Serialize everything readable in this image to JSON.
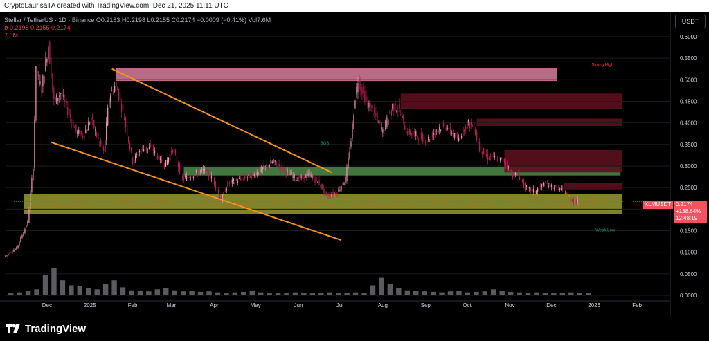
{
  "header": {
    "attribution": "CryptoLaurisaTA created with TradingView.com, Dec 21, 2025 11:11 UTC"
  },
  "legend": {
    "line1": "Stellar / TetherUS · 1D · Binance  O0.2183  H0.2198  L0.2155  C0.2174  −0.0009 (−0.41%)  Vol7.6M",
    "line2": "ø  0.2198  0.2155  0.2174",
    "line3": "7.6M"
  },
  "price_scale": {
    "currency": "USDT"
  },
  "last_price": {
    "symbol": "XLMUSDT",
    "value": "0.2174",
    "change": "+138.64%",
    "countdown": "12:48:19"
  },
  "brand": {
    "name": "TradingView"
  },
  "colors": {
    "up": "#f48fb1",
    "down": "#b71c50",
    "channel": "#f7931a",
    "resistance_zone": "#f48fb1",
    "support_zone": "#c8c840",
    "green_zone": "#4c8c4a",
    "dark_zone": "#5a0f1e",
    "label_red": "#f23645",
    "label_green": "#089981",
    "volume": "#5a5a60"
  },
  "chart_data": {
    "type": "candlestick",
    "symbol": "XLMUSDT",
    "exchange": "Binance",
    "interval": "1D",
    "ylim": [
      0.0,
      0.64
    ],
    "y_ticks": [
      "0.6000",
      "0.5500",
      "0.5000",
      "0.4500",
      "0.4000",
      "0.3500",
      "0.3000",
      "0.2500",
      "0.2000",
      "0.1500",
      "0.1000",
      "0.0500",
      "0.0000"
    ],
    "x_ticks": [
      "Dec",
      "2025",
      "Feb",
      "Mar",
      "Apr",
      "May",
      "Jun",
      "Jul",
      "Aug",
      "Sep",
      "Oct",
      "Nov",
      "Dec",
      "2026",
      "Feb"
    ],
    "x_tick_dates": [
      "2024-12-01",
      "2025-01-01",
      "2025-02-01",
      "2025-03-01",
      "2025-04-01",
      "2025-05-01",
      "2025-06-01",
      "2025-07-01",
      "2025-08-01",
      "2025-09-01",
      "2025-10-01",
      "2025-11-01",
      "2025-12-01",
      "2026-01-01",
      "2026-02-01"
    ],
    "x_range": [
      "2024-11-01",
      "2026-02-25"
    ],
    "price_path": [
      [
        "2024-11-01",
        0.09
      ],
      [
        "2024-11-10",
        0.11
      ],
      [
        "2024-11-18",
        0.17
      ],
      [
        "2024-11-22",
        0.3
      ],
      [
        "2024-11-24",
        0.52
      ],
      [
        "2024-11-28",
        0.48
      ],
      [
        "2024-12-03",
        0.58
      ],
      [
        "2024-12-07",
        0.45
      ],
      [
        "2024-12-12",
        0.47
      ],
      [
        "2024-12-18",
        0.42
      ],
      [
        "2024-12-23",
        0.38
      ],
      [
        "2024-12-28",
        0.37
      ],
      [
        "2025-01-03",
        0.41
      ],
      [
        "2025-01-08",
        0.36
      ],
      [
        "2025-01-12",
        0.33
      ],
      [
        "2025-01-16",
        0.46
      ],
      [
        "2025-01-21",
        0.49
      ],
      [
        "2025-01-27",
        0.41
      ],
      [
        "2025-02-02",
        0.31
      ],
      [
        "2025-02-08",
        0.34
      ],
      [
        "2025-02-16",
        0.34
      ],
      [
        "2025-02-25",
        0.3
      ],
      [
        "2025-03-03",
        0.34
      ],
      [
        "2025-03-10",
        0.27
      ],
      [
        "2025-03-18",
        0.28
      ],
      [
        "2025-03-25",
        0.29
      ],
      [
        "2025-04-01",
        0.27
      ],
      [
        "2025-04-07",
        0.22
      ],
      [
        "2025-04-12",
        0.26
      ],
      [
        "2025-04-22",
        0.27
      ],
      [
        "2025-05-01",
        0.28
      ],
      [
        "2025-05-10",
        0.3
      ],
      [
        "2025-05-14",
        0.31
      ],
      [
        "2025-05-23",
        0.29
      ],
      [
        "2025-06-01",
        0.27
      ],
      [
        "2025-06-10",
        0.28
      ],
      [
        "2025-06-17",
        0.26
      ],
      [
        "2025-06-22",
        0.23
      ],
      [
        "2025-06-30",
        0.24
      ],
      [
        "2025-07-06",
        0.27
      ],
      [
        "2025-07-10",
        0.36
      ],
      [
        "2025-07-13",
        0.46
      ],
      [
        "2025-07-15",
        0.5
      ],
      [
        "2025-07-21",
        0.45
      ],
      [
        "2025-07-27",
        0.42
      ],
      [
        "2025-08-02",
        0.38
      ],
      [
        "2025-08-09",
        0.44
      ],
      [
        "2025-08-14",
        0.43
      ],
      [
        "2025-08-19",
        0.38
      ],
      [
        "2025-08-27",
        0.37
      ],
      [
        "2025-09-03",
        0.36
      ],
      [
        "2025-09-12",
        0.39
      ],
      [
        "2025-09-18",
        0.39
      ],
      [
        "2025-09-25",
        0.36
      ],
      [
        "2025-10-02",
        0.4
      ],
      [
        "2025-10-07",
        0.39
      ],
      [
        "2025-10-11",
        0.34
      ],
      [
        "2025-10-17",
        0.32
      ],
      [
        "2025-10-23",
        0.32
      ],
      [
        "2025-10-29",
        0.31
      ],
      [
        "2025-11-04",
        0.28
      ],
      [
        "2025-11-08",
        0.28
      ],
      [
        "2025-11-13",
        0.25
      ],
      [
        "2025-11-20",
        0.24
      ],
      [
        "2025-11-27",
        0.26
      ],
      [
        "2025-12-05",
        0.25
      ],
      [
        "2025-12-12",
        0.24
      ],
      [
        "2025-12-17",
        0.22
      ],
      [
        "2025-12-21",
        0.2174
      ]
    ],
    "zones": [
      {
        "kind": "resistance",
        "x": [
          "2025-01-20",
          "2025-12-05"
        ],
        "y": [
          0.497,
          0.527
        ]
      },
      {
        "kind": "green",
        "x": [
          "2025-03-10",
          "2026-01-20"
        ],
        "y": [
          0.278,
          0.297
        ]
      },
      {
        "kind": "support",
        "x": [
          "2024-11-14",
          "2026-01-21"
        ],
        "y": [
          0.188,
          0.235
        ]
      },
      {
        "kind": "dark",
        "x": [
          "2025-08-14",
          "2026-01-21"
        ],
        "y": [
          0.432,
          0.468
        ]
      },
      {
        "kind": "dark",
        "x": [
          "2025-10-08",
          "2026-01-21"
        ],
        "y": [
          0.393,
          0.41
        ]
      },
      {
        "kind": "dark",
        "x": [
          "2025-10-28",
          "2026-01-21"
        ],
        "y": [
          0.285,
          0.337
        ]
      },
      {
        "kind": "dark",
        "x": [
          "2025-12-10",
          "2026-01-21"
        ],
        "y": [
          0.246,
          0.26
        ]
      }
    ],
    "trendlines": [
      {
        "from": [
          "2025-01-17",
          0.525
        ],
        "to": [
          "2025-06-25",
          0.285
        ]
      },
      {
        "from": [
          "2024-12-04",
          0.355
        ],
        "to": [
          "2025-07-02",
          0.128
        ]
      }
    ],
    "annotations": [
      {
        "text": "Strong High",
        "date": "2026-01-07",
        "price": 0.532,
        "color": "label_red"
      },
      {
        "text": "Weak Low",
        "date": "2026-01-09",
        "price": 0.148,
        "color": "label_green"
      },
      {
        "text": "BOS",
        "date": "2025-06-20",
        "price": 0.35,
        "color": "label_green"
      }
    ],
    "volume": [
      4,
      6,
      9,
      12,
      40,
      55,
      30,
      20,
      18,
      14,
      12,
      22,
      30,
      16,
      10,
      9,
      8,
      12,
      14,
      10,
      8,
      9,
      7,
      8,
      6,
      5,
      6,
      7,
      9,
      6,
      5,
      4,
      5,
      6,
      5,
      4,
      5,
      6,
      4,
      5,
      6,
      5,
      20,
      35,
      22,
      14,
      10,
      9,
      8,
      7,
      6,
      8,
      9,
      6,
      7,
      8,
      12,
      9,
      7,
      6,
      5,
      6,
      5,
      4,
      5,
      6,
      5,
      4
    ]
  }
}
